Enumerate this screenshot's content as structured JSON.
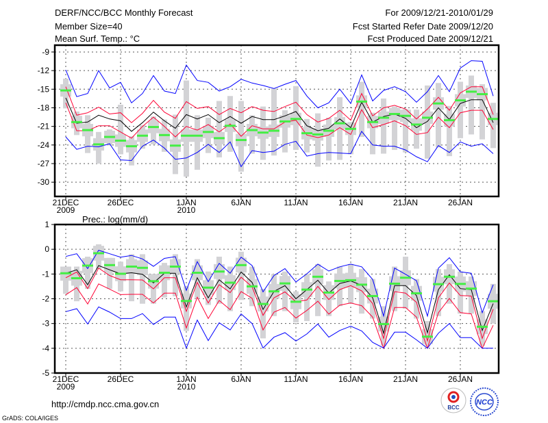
{
  "header": {
    "title": "DERF/NCC/BCC Monthly Forecast",
    "member_size": "Member Size=40",
    "variable": "Mean Surf. Temp.: °C",
    "period": "For 2009/12/21-2010/01/29",
    "start_date": "Fcst Started Refer Date 2009/12/20",
    "produced_date": "Fcst Produced Date 2009/12/21"
  },
  "footer": {
    "url": "http://cmdp.ncc.cma.gov.cn",
    "credit": "GrADS: COLA/IGES",
    "logo_left": "BCC",
    "logo_right": "NCC"
  },
  "colors": {
    "max_min": "#0000ff",
    "spread": "#ff0033",
    "mean": "#000000",
    "marker": "#44ee44",
    "box": "#d3d3d6"
  },
  "chart_data": [
    {
      "type": "line",
      "title": "Mean Surf. Temp.: °C",
      "xlabel": "",
      "ylabel": "",
      "ylim": [
        -32.3,
        -7.9
      ],
      "yticks": [
        -9,
        -12,
        -15,
        -18,
        -21,
        -24,
        -27,
        -30
      ],
      "xticks": [
        {
          "day": 0,
          "label": "21DEC",
          "sub": "2009"
        },
        {
          "day": 5,
          "label": "26DEC"
        },
        {
          "day": 11,
          "label": "1JAN",
          "sub": "2010"
        },
        {
          "day": 16,
          "label": "6JAN"
        },
        {
          "day": 21,
          "label": "11JAN"
        },
        {
          "day": 26,
          "label": "16JAN"
        },
        {
          "day": 31,
          "label": "21JAN"
        },
        {
          "day": 36,
          "label": "26JAN"
        }
      ],
      "grid": true,
      "box_half_range": 1.0,
      "series": [
        {
          "name": "max",
          "color": "#0000ff",
          "values": [
            -11.9,
            -16.2,
            -15.7,
            -12,
            -14.8,
            -13.9,
            -17.2,
            -15.7,
            -12.8,
            -15.3,
            -15.7,
            -11.1,
            -13.6,
            -13.9,
            -15.3,
            -14.6,
            -13.4,
            -14,
            -14.4,
            -14.9,
            -14.2,
            -13.6,
            -16.1,
            -18,
            -17.2,
            -15,
            -17.3,
            -12.7,
            -16.9,
            -15.2,
            -14.6,
            -15.4,
            -17.1,
            -15.4,
            -12.8,
            -15.4,
            -11.6,
            -10.4,
            -10.5,
            -16.1
          ]
        },
        {
          "name": "upper",
          "color": "#ff0033",
          "values": [
            -14.6,
            -19.2,
            -18.8,
            -17.9,
            -19,
            -18.8,
            -20.4,
            -18.9,
            -16.8,
            -18.7,
            -19.7,
            -17,
            -18.1,
            -17.8,
            -19.1,
            -18.1,
            -18.8,
            -17.8,
            -18.4,
            -18.6,
            -17.8,
            -17.1,
            -19.1,
            -20.3,
            -19.7,
            -18.4,
            -20,
            -15.7,
            -19.3,
            -18,
            -17.6,
            -18.2,
            -19.8,
            -18.2,
            -16.3,
            -18.4,
            -15.6,
            -14.6,
            -14.6,
            -19.1
          ]
        },
        {
          "name": "mean",
          "color": "#000000",
          "values": [
            -16.4,
            -20.5,
            -20.3,
            -19.2,
            -19.8,
            -20.1,
            -21.8,
            -20.4,
            -18.7,
            -20.1,
            -21.3,
            -19.1,
            -19.8,
            -19.1,
            -20.4,
            -19.4,
            -20.5,
            -19.4,
            -19.9,
            -19.9,
            -19.3,
            -18.6,
            -20.9,
            -21.7,
            -21.3,
            -19.8,
            -21.2,
            -17.1,
            -20.3,
            -19.4,
            -19,
            -19.7,
            -21.2,
            -20.2,
            -18,
            -19.9,
            -17.3,
            -16.7,
            -16.7,
            -20.4
          ]
        },
        {
          "name": "lower",
          "color": "#ff0033",
          "values": [
            -17.2,
            -21.7,
            -21.7,
            -20.9,
            -20.9,
            -21.9,
            -22.9,
            -21,
            -19.5,
            -21,
            -22.7,
            -21,
            -21.6,
            -20.7,
            -21.9,
            -20.6,
            -22.6,
            -20.9,
            -21.4,
            -21.4,
            -20.3,
            -20,
            -22.4,
            -22.8,
            -22.4,
            -21.2,
            -22.3,
            -18.3,
            -21.2,
            -20.7,
            -20.1,
            -20.9,
            -22.3,
            -22,
            -19.5,
            -21.2,
            -18.8,
            -18.4,
            -18.4,
            -21.5
          ]
        },
        {
          "name": "min",
          "color": "#0000ff",
          "values": [
            -22.7,
            -24.7,
            -24.2,
            -24.3,
            -23.8,
            -26.4,
            -26.5,
            -24.2,
            -23.2,
            -24.5,
            -26.3,
            -26.1,
            -25.2,
            -23.9,
            -25.2,
            -23.5,
            -27.5,
            -24.9,
            -25.2,
            -25,
            -23.9,
            -23.4,
            -25.8,
            -25.4,
            -25.2,
            -25.3,
            -25.4,
            -21.8,
            -24,
            -24.2,
            -24.2,
            -24.8,
            -25.9,
            -26.7,
            -24.1,
            -25.2,
            -23.5,
            -24.2,
            -23.8,
            -25.4
          ]
        }
      ],
      "marker": [
        -15.2,
        -20.3,
        -21.6,
        -23.9,
        -22.7,
        -23.3,
        -24.2,
        -22.5,
        -21.1,
        -22.4,
        -24.1,
        -22.5,
        -22.5,
        -21.9,
        -22.9,
        -20.9,
        -23.2,
        -21.6,
        -22,
        -21.7,
        -20.2,
        -19.8,
        -22.1,
        -22.3,
        -21.7,
        -20.5,
        -21.4,
        -17,
        -20.3,
        -19.6,
        -19,
        -19.3,
        -20.7,
        -19.6,
        -17.3,
        -20,
        -16.8,
        -15.4,
        -15.8,
        -19.8
      ],
      "whisker_hi": [
        -13.3,
        -18.6,
        -19.2,
        -21.9,
        -21.5,
        -17.5,
        -22.6,
        -20.8,
        -19.4,
        -19.9,
        -19.1,
        -13.6,
        -19.2,
        -19.6,
        -16.9,
        -16.1,
        -16.9,
        -19.2,
        -17.8,
        -14.9,
        -18.4,
        -14.5,
        -19.8,
        -18.9,
        -19.6,
        -16.3,
        -20.3,
        -13.8,
        -18.8,
        -16.5,
        -17.8,
        -18.2,
        -18.3,
        -14.4,
        -14.0,
        -17.7,
        -13.8,
        -12.8,
        -14.2,
        -17.2
      ],
      "whisker_lo": [
        -18.1,
        -22.4,
        -25.3,
        -27,
        -24.1,
        -25.5,
        -27.3,
        -24.6,
        -23.9,
        -25.1,
        -28.7,
        -29.1,
        -28,
        -25.3,
        -26,
        -25.1,
        -28.3,
        -25.4,
        -26.4,
        -25.7,
        -25.2,
        -24.8,
        -25.2,
        -27.5,
        -26.5,
        -26.4,
        -25.5,
        -22.7,
        -25.5,
        -25.4,
        -24.8,
        -25.2,
        -24.6,
        -26.2,
        -24.4,
        -25.8,
        -22.9,
        -22.3,
        -23.1,
        -24.5
      ]
    },
    {
      "type": "line",
      "title": "Prec.: log(mm/d)",
      "xlabel": "",
      "ylabel": "",
      "ylim": [
        -5,
        1
      ],
      "yticks": [
        1,
        0,
        -1,
        -2,
        -3,
        -4,
        -5
      ],
      "xticks": [
        {
          "day": 0,
          "label": "21DEC",
          "sub": "2009"
        },
        {
          "day": 5,
          "label": "26DEC"
        },
        {
          "day": 11,
          "label": "1JAN",
          "sub": "2010"
        },
        {
          "day": 16,
          "label": "6JAN"
        },
        {
          "day": 21,
          "label": "11JAN"
        },
        {
          "day": 26,
          "label": "16JAN"
        },
        {
          "day": 31,
          "label": "21JAN"
        },
        {
          "day": 36,
          "label": "26JAN"
        }
      ],
      "grid": true,
      "box_half_range": 0.3,
      "series": [
        {
          "name": "max",
          "color": "#0000ff",
          "values": [
            -0.29,
            -0.18,
            -0.78,
            -0.04,
            -0.18,
            -0.32,
            -0.25,
            -0.39,
            -0.69,
            -0.37,
            -0.3,
            -1.66,
            -0.5,
            -1.31,
            -0.57,
            -0.97,
            -0.32,
            -0.66,
            -1.72,
            -1.06,
            -0.78,
            -1.32,
            -0.99,
            -0.6,
            -0.88,
            -0.71,
            -0.6,
            -0.71,
            -1.22,
            -2.7,
            -0.76,
            -1.01,
            -1.27,
            -2.7,
            -0.76,
            -0.34,
            -0.91,
            -0.97,
            -2.56,
            -1.43
          ]
        },
        {
          "name": "upper",
          "color": "#ff0033",
          "values": [
            -1.15,
            -0.92,
            -1.59,
            -0.76,
            -1.06,
            -1.23,
            -1.23,
            -1.24,
            -1.6,
            -1.15,
            -1.15,
            -2.51,
            -1.34,
            -2.17,
            -1.43,
            -1.75,
            -1.13,
            -1.52,
            -2.67,
            -1.96,
            -1.72,
            -2.12,
            -2.05,
            -1.5,
            -2.03,
            -1.63,
            -1.47,
            -1.68,
            -2.19,
            -3.6,
            -1.71,
            -1.77,
            -2.14,
            -3.7,
            -1.96,
            -1.36,
            -1.87,
            -1.89,
            -3.6,
            -2.42
          ]
        },
        {
          "name": "mean",
          "color": "#000000",
          "values": [
            -0.97,
            -0.83,
            -1.43,
            -0.66,
            -0.83,
            -0.99,
            -0.95,
            -1.01,
            -1.36,
            -0.97,
            -0.97,
            -2.33,
            -1.15,
            -1.96,
            -1.23,
            -1.6,
            -0.92,
            -1.34,
            -2.43,
            -1.7,
            -1.47,
            -2.0,
            -1.63,
            -1.25,
            -1.77,
            -1.38,
            -1.28,
            -1.45,
            -1.96,
            -3.39,
            -1.47,
            -1.47,
            -1.87,
            -3.37,
            -1.63,
            -1.03,
            -1.59,
            -1.63,
            -3.28,
            -2.19
          ]
        },
        {
          "name": "lower",
          "color": "#ff0033",
          "values": [
            -1.84,
            -1.55,
            -2.21,
            -1.4,
            -1.61,
            -1.83,
            -1.82,
            -1.82,
            -2.17,
            -1.77,
            -1.77,
            -3.18,
            -1.94,
            -2.8,
            -2.07,
            -2.44,
            -1.71,
            -1.98,
            -3.26,
            -2.54,
            -2.35,
            -2.78,
            -2.47,
            -2.1,
            -2.62,
            -2.26,
            -2.17,
            -2.28,
            -2.74,
            -4,
            -2.35,
            -2.35,
            -2.74,
            -4,
            -2.56,
            -1.99,
            -2.56,
            -2.61,
            -4,
            -3.07
          ]
        },
        {
          "name": "min",
          "color": "#0000ff",
          "values": [
            -2.52,
            -2.4,
            -3.02,
            -2.33,
            -2.54,
            -2.8,
            -2.8,
            -2.6,
            -3.04,
            -2.74,
            -2.74,
            -3.99,
            -2.86,
            -3.69,
            -2.97,
            -3.26,
            -2.61,
            -3,
            -3.99,
            -3.55,
            -3.37,
            -3.71,
            -3.42,
            -3.02,
            -3.55,
            -3.28,
            -3.11,
            -3.3,
            -3.76,
            -3.99,
            -3.35,
            -3.35,
            -3.66,
            -4,
            -3.39,
            -3,
            -3.57,
            -3.57,
            -4,
            -4
          ]
        }
      ],
      "marker": [
        -0.97,
        -1.17,
        -0.66,
        -0.16,
        -0.64,
        -0.99,
        -0.7,
        -0.75,
        -1.29,
        -0.95,
        -0.7,
        -2.09,
        -0.95,
        -1.55,
        -0.9,
        -1.35,
        -0.64,
        -1.5,
        -2.21,
        -1.7,
        -1.38,
        -2.12,
        -1.63,
        -1.11,
        -1.75,
        -1.28,
        -1.25,
        -1.43,
        -1.89,
        -3.02,
        -1.39,
        -1.15,
        -1.78,
        -3.53,
        -1.41,
        -1.11,
        -1.4,
        -1.59,
        -3.13,
        -2.1
      ],
      "whisker_hi": [
        -0.7,
        -0.7,
        -0.3,
        0.2,
        -0.35,
        -0.5,
        -0.2,
        -0.2,
        -1.0,
        -0.55,
        -0.2,
        -1.5,
        -0.4,
        -0.9,
        -0.3,
        -0.7,
        -0.1,
        -0.7,
        -1.6,
        -1.0,
        -0.9,
        -1.7,
        -1.0,
        -0.6,
        -1.3,
        -0.7,
        -0.6,
        -0.8,
        -1.2,
        -2.3,
        -0.7,
        -0.3,
        -1.2,
        -2.9,
        -0.8,
        -0.6,
        -0.9,
        -1.1,
        -2.5,
        -1.4
      ],
      "whisker_lo": [
        -1.8,
        -2.1,
        -1.6,
        -0.8,
        -1.6,
        -1.7,
        -2.1,
        -2.2,
        -2.2,
        -1.95,
        -1.9,
        -3.3,
        -2.0,
        -2.25,
        -2.2,
        -2.5,
        -2.05,
        -2.3,
        -3.6,
        -2.7,
        -2.5,
        -2.95,
        -2.9,
        -2.7,
        -2.7,
        -2.3,
        -2.2,
        -2.6,
        -2.8,
        -3.9,
        -2.5,
        -2.4,
        -2.8,
        -3.9,
        -2.7,
        -2.2,
        -2.6,
        -2.6,
        -3.9,
        -3.0
      ]
    }
  ]
}
